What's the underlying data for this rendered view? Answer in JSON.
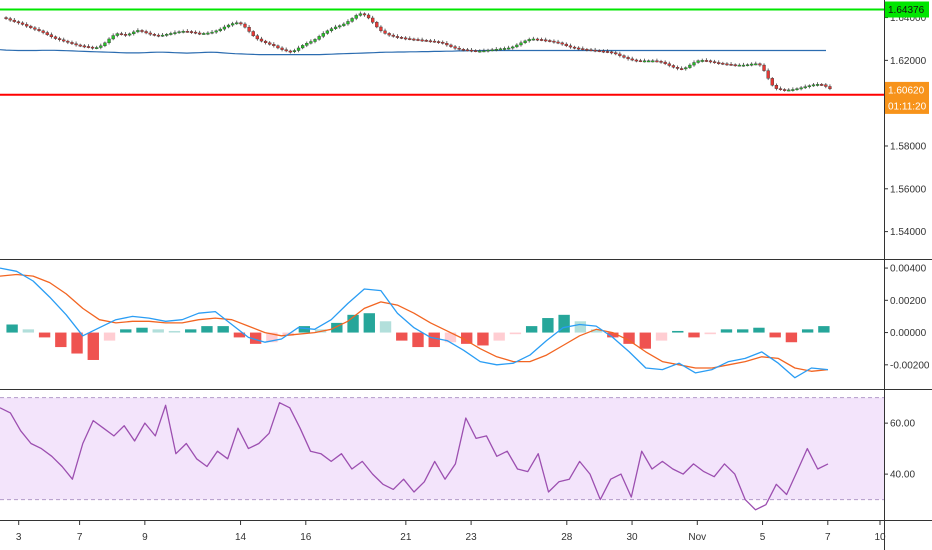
{
  "chart_data": [
    {
      "type": "candlestick",
      "ylim": [
        1.5272,
        1.6482
      ],
      "y_ticks": [
        "1.54000",
        "1.56000",
        "1.58000",
        "1.62000",
        "1.64000"
      ],
      "y_tick_values": [
        1.54,
        1.56,
        1.58,
        1.62,
        1.64
      ],
      "horizontal_lines": [
        {
          "label": "1.64376",
          "value": 1.64376,
          "color": "#00e600"
        },
        {
          "label": "1.60395",
          "value": 1.60395,
          "color": "#ff0000"
        }
      ],
      "price_tag": {
        "label": "1.60620",
        "value": 1.6062,
        "color": "#f7931a"
      },
      "countdown": "01:11:20",
      "moving_average": {
        "color": "#2b6cb0",
        "values": [
          1.625,
          1.6248,
          1.6247,
          1.6246,
          1.6246,
          1.6246,
          1.6246,
          1.6247,
          1.6247,
          1.6247,
          1.6246,
          1.6245,
          1.6244,
          1.6243,
          1.6242,
          1.6241,
          1.624,
          1.6239,
          1.6238,
          1.6237,
          1.6236,
          1.6235,
          1.6235,
          1.6235,
          1.6236,
          1.6237,
          1.6238,
          1.6238,
          1.6237,
          1.6236,
          1.6235,
          1.6234,
          1.6235,
          1.6236,
          1.6237,
          1.6238,
          1.6237,
          1.6235,
          1.6233,
          1.6231,
          1.623,
          1.6229,
          1.6228,
          1.6227,
          1.6227,
          1.6227,
          1.6227,
          1.6227,
          1.6227,
          1.6227,
          1.6227,
          1.6227,
          1.6227,
          1.6227,
          1.6228,
          1.6229,
          1.623,
          1.6231,
          1.6232,
          1.6233,
          1.6234,
          1.6235,
          1.6236,
          1.6237,
          1.6238,
          1.6238,
          1.6239,
          1.6239,
          1.624,
          1.624,
          1.6241,
          1.6241,
          1.6242,
          1.6242,
          1.6243,
          1.6243,
          1.6244,
          1.6244,
          1.6245,
          1.6245,
          1.6246,
          1.6246,
          1.6246,
          1.6246,
          1.6246,
          1.6246,
          1.6246,
          1.6246,
          1.6246,
          1.6246,
          1.6246,
          1.6246,
          1.6246,
          1.6246,
          1.6246,
          1.6246,
          1.6246,
          1.6246,
          1.6246,
          1.6246,
          1.6246,
          1.6246,
          1.6246,
          1.6246,
          1.6246,
          1.6246,
          1.6246,
          1.6246,
          1.6246,
          1.6246,
          1.6246,
          1.6246,
          1.6246,
          1.6246,
          1.6246,
          1.6246,
          1.6246,
          1.6246,
          1.6246,
          1.6246,
          1.6246,
          1.6246,
          1.6246,
          1.6246,
          1.6246,
          1.6246,
          1.6246,
          1.6246,
          1.6246,
          1.6246,
          1.6246,
          1.6246,
          1.6246,
          1.6246,
          1.6246,
          1.6246,
          1.6246,
          1.6246
        ]
      },
      "closes": [
        1.6395,
        1.6388,
        1.6381,
        1.6375,
        1.6368,
        1.636,
        1.6352,
        1.6345,
        1.6338,
        1.633,
        1.632,
        1.631,
        1.6302,
        1.6296,
        1.629,
        1.6284,
        1.6278,
        1.6272,
        1.6268,
        1.6265,
        1.6262,
        1.6258,
        1.626,
        1.6268,
        1.6282,
        1.63,
        1.6316,
        1.6325,
        1.6322,
        1.6318,
        1.6324,
        1.6333,
        1.634,
        1.6335,
        1.6328,
        1.6322,
        1.6318,
        1.6316,
        1.6318,
        1.6322,
        1.6326,
        1.633,
        1.6334,
        1.6336,
        1.6335,
        1.6332,
        1.6328,
        1.6326,
        1.6326,
        1.6328,
        1.6332,
        1.6338,
        1.6346,
        1.6356,
        1.6365,
        1.6372,
        1.6376,
        1.637,
        1.6355,
        1.6335,
        1.6315,
        1.63,
        1.629,
        1.6282,
        1.6275,
        1.6268,
        1.6258,
        1.625,
        1.6244,
        1.624,
        1.6246,
        1.6258,
        1.627,
        1.628,
        1.6288,
        1.6298,
        1.6312,
        1.6326,
        1.6338,
        1.6348,
        1.6356,
        1.6362,
        1.637,
        1.6382,
        1.6396,
        1.641,
        1.6418,
        1.6412,
        1.6398,
        1.6378,
        1.6356,
        1.6338,
        1.6326,
        1.6318,
        1.6312,
        1.6308,
        1.6305,
        1.6302,
        1.63,
        1.6298,
        1.6296,
        1.6294,
        1.6292,
        1.629,
        1.6288,
        1.6285,
        1.628,
        1.6272,
        1.6264,
        1.6257,
        1.6252,
        1.625,
        1.6248,
        1.6246,
        1.6244,
        1.6244,
        1.6245,
        1.6248,
        1.625,
        1.6252,
        1.6254,
        1.6256,
        1.6258,
        1.6263,
        1.6272,
        1.6282,
        1.6291,
        1.6298,
        1.63,
        1.6298,
        1.6296,
        1.6293,
        1.629,
        1.6286,
        1.6282,
        1.6276,
        1.6268,
        1.6262,
        1.6258,
        1.6255,
        1.6252,
        1.625,
        1.6248,
        1.6246,
        1.6244,
        1.6242,
        1.624,
        1.6236,
        1.623,
        1.6222,
        1.6214,
        1.6207,
        1.6202,
        1.6199,
        1.6198,
        1.6198,
        1.6198,
        1.6198,
        1.6196,
        1.6192,
        1.6184,
        1.6176,
        1.6168,
        1.6162,
        1.616,
        1.6166,
        1.6178,
        1.619,
        1.6198,
        1.62,
        1.6198,
        1.6194,
        1.619,
        1.6187,
        1.6184,
        1.6182,
        1.618,
        1.6178,
        1.6178,
        1.6178,
        1.618,
        1.6183,
        1.6184,
        1.6178,
        1.6152,
        1.6116,
        1.6084,
        1.6068,
        1.6064,
        1.6062,
        1.6062,
        1.6064,
        1.6068,
        1.6072,
        1.6077,
        1.6082,
        1.6086,
        1.6088,
        1.6086,
        1.6078,
        1.6067
      ]
    },
    {
      "type": "macd",
      "ylim": [
        -0.0035,
        0.0045
      ],
      "y_ticks": [
        "0.00400",
        "0.00200",
        "0.00000",
        "-0.00200"
      ],
      "y_tick_values": [
        0.004,
        0.002,
        0.0,
        -0.002
      ],
      "colors": {
        "macd": "#2a9df4",
        "signal": "#f26522",
        "hist_up": "#26a69a",
        "hist_up_light": "#b2dfdb",
        "hist_down": "#ef5350",
        "hist_down_light": "#ffcdd2"
      },
      "macd": [
        0.004,
        0.0038,
        0.0032,
        0.0022,
        0.0011,
        -0.0002,
        0.0003,
        0.0008,
        0.001,
        0.0009,
        0.0007,
        0.0008,
        0.0012,
        0.0013,
        0.0005,
        -0.0003,
        -0.0006,
        -0.0004,
        0.0003,
        0.0002,
        0.0008,
        0.0018,
        0.0027,
        0.0026,
        0.0012,
        0.0003,
        -0.0003,
        -0.0005,
        -0.0011,
        -0.0018,
        -0.002,
        -0.0019,
        -0.0014,
        -0.0005,
        0.0003,
        0.0005,
        0.0004,
        -0.0003,
        -0.0012,
        -0.0022,
        -0.0023,
        -0.0019,
        -0.0025,
        -0.0023,
        -0.0018,
        -0.0016,
        -0.0012,
        -0.0019,
        -0.0028,
        -0.0022,
        -0.0023
      ],
      "signal": [
        0.0035,
        0.0036,
        0.0035,
        0.0031,
        0.0024,
        0.0015,
        0.0008,
        0.0006,
        0.0007,
        0.0007,
        0.0006,
        0.0006,
        0.0008,
        0.0009,
        0.0008,
        0.0004,
        0.0,
        -0.0002,
        -0.0001,
        0.0,
        0.0002,
        0.0007,
        0.0015,
        0.0019,
        0.0017,
        0.0012,
        0.0006,
        0.0001,
        -0.0004,
        -0.001,
        -0.0015,
        -0.0018,
        -0.0018,
        -0.0014,
        -0.0008,
        -0.0002,
        0.0002,
        0.0,
        -0.0005,
        -0.0012,
        -0.0018,
        -0.002,
        -0.0022,
        -0.0022,
        -0.002,
        -0.0018,
        -0.0015,
        -0.0016,
        -0.0022,
        -0.0024,
        -0.0023
      ],
      "histogram": [
        0.0005,
        0.0002,
        -0.0003,
        -0.0009,
        -0.0013,
        -0.0017,
        -0.0005,
        0.0002,
        0.0003,
        0.0002,
        0.0001,
        0.0002,
        0.0004,
        0.0004,
        -0.0003,
        -0.0007,
        -0.0006,
        -0.0002,
        0.0004,
        0.0002,
        0.0006,
        0.0011,
        0.0012,
        0.0007,
        -0.0005,
        -0.0009,
        -0.0009,
        -0.0006,
        -0.0007,
        -0.0008,
        -0.0005,
        -0.0001,
        0.0004,
        0.0009,
        0.0011,
        0.0007,
        0.0002,
        -0.0003,
        -0.0007,
        -0.001,
        -0.0005,
        0.0001,
        -0.0003,
        -0.0001,
        0.0002,
        0.0002,
        0.0003,
        -0.0003,
        -0.0006,
        0.0002,
        0.0004
      ]
    },
    {
      "type": "rsi",
      "ylim": [
        22,
        73
      ],
      "y_ticks": [
        "60.00",
        "40.00"
      ],
      "y_tick_values": [
        60,
        40
      ],
      "band": [
        30,
        70
      ],
      "colors": {
        "line": "#9c4fb0",
        "band_fill": "#f3e4fb"
      },
      "values": [
        66,
        64,
        57,
        52,
        50,
        47,
        43,
        38,
        52,
        61,
        58,
        55,
        59,
        53,
        60,
        55,
        67,
        48,
        52,
        46,
        43,
        49,
        46,
        58,
        50,
        52,
        56,
        68,
        66,
        58,
        49,
        48,
        45,
        48,
        42,
        45,
        40,
        36,
        34,
        38,
        33,
        37,
        45,
        38,
        44,
        62,
        54,
        55,
        47,
        49,
        42,
        41,
        48,
        33,
        37,
        38,
        45,
        40,
        30,
        38,
        40,
        31,
        49,
        42,
        45,
        42,
        40,
        44,
        41,
        39,
        44,
        40,
        30,
        26,
        28,
        36,
        32,
        41,
        50,
        42,
        44
      ],
      "x_tick_labels": [
        "3",
        "7",
        "9",
        "14",
        "16",
        "21",
        "23",
        "28",
        "30",
        "Nov",
        "5",
        "7",
        "10"
      ],
      "x_tick_index": [
        0.01,
        0.08,
        0.155,
        0.265,
        0.34,
        0.455,
        0.53,
        0.64,
        0.715,
        0.79,
        0.865,
        0.94,
        1.0
      ]
    }
  ]
}
